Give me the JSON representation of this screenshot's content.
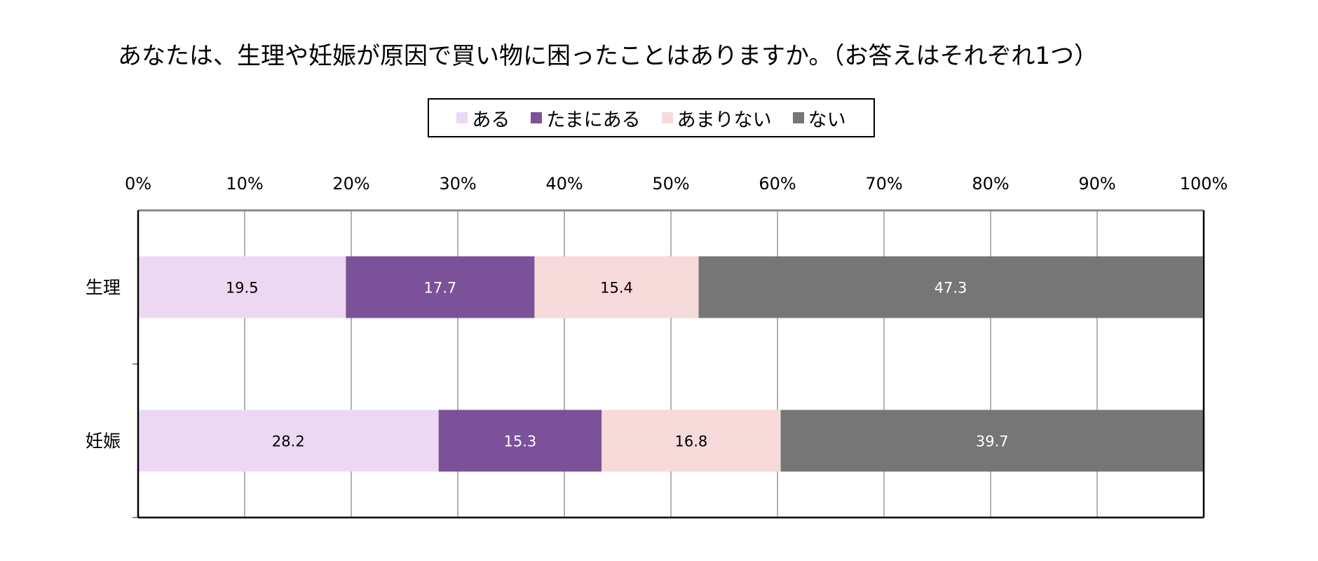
{
  "title": "あなたは、生理や妊娠が原因で買い物に困ったことはありますか。（お答えはそれぞれ1つ）",
  "colors": [
    "#ecd8f2",
    "#7b5299",
    "#f7dada",
    "#767676"
  ],
  "chart_data": {
    "type": "bar",
    "orientation": "horizontal",
    "stacked": true,
    "title": "あなたは、生理や妊娠が原因で買い物に困ったことはありますか。（お答えはそれぞれ1つ）",
    "categories": [
      "生理",
      "妊娠"
    ],
    "series": [
      {
        "name": "ある",
        "values": [
          19.5,
          28.2
        ]
      },
      {
        "name": "たまにある",
        "values": [
          17.7,
          15.3
        ]
      },
      {
        "name": "あまりない",
        "values": [
          15.4,
          16.8
        ]
      },
      {
        "name": "ない",
        "values": [
          47.3,
          39.7
        ]
      }
    ],
    "x_ticks": [
      "0%",
      "10%",
      "20%",
      "30%",
      "40%",
      "50%",
      "60%",
      "70%",
      "80%",
      "90%",
      "100%"
    ],
    "xlim": [
      0,
      100
    ],
    "grid": true,
    "legend_position": "top"
  }
}
